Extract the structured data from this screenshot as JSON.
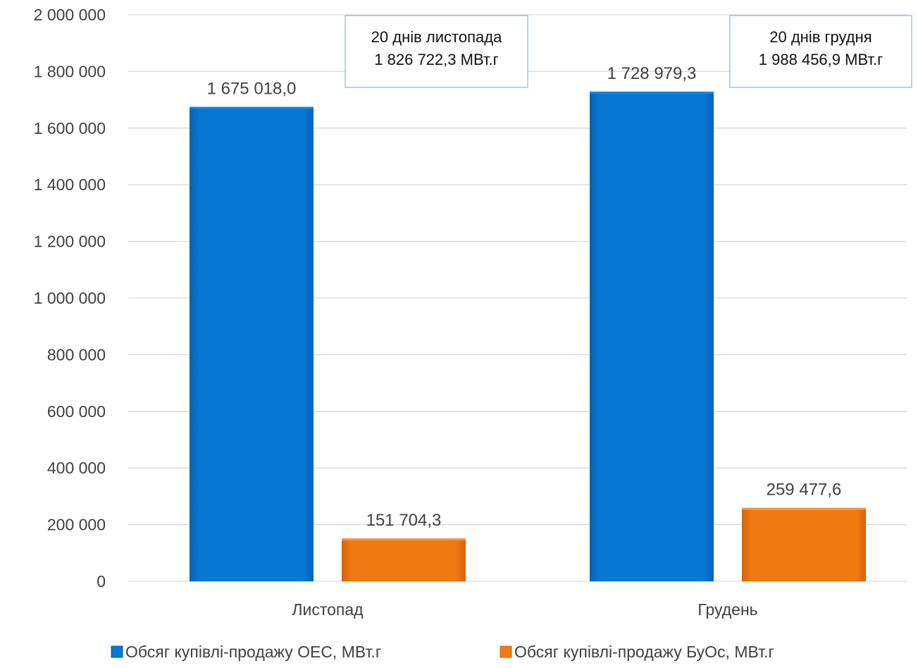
{
  "chart_data": {
    "type": "bar",
    "categories": [
      "Листопад",
      "Грудень"
    ],
    "series": [
      {
        "name": "Обсяг купівлі-продажу ОЕС, МВт.г",
        "values": [
          1675018.0,
          1728979.3
        ],
        "labels": [
          "1 675 018,0",
          "1 728 979,3"
        ],
        "color": "#0577D2"
      },
      {
        "name": "Обсяг купівлі-продажу БуОс, МВт.г",
        "values": [
          151704.3,
          259477.6
        ],
        "labels": [
          "151 704,3",
          "259 477,6"
        ],
        "color": "#F07A12"
      }
    ],
    "ylim": [
      0,
      2000000
    ],
    "yticks": [
      0,
      200000,
      400000,
      600000,
      800000,
      1000000,
      1200000,
      1400000,
      1600000,
      1800000,
      2000000
    ],
    "ytick_labels": [
      "0",
      "200 000",
      "400 000",
      "600 000",
      "800 000",
      "1 000 000",
      "1 200 000",
      "1 400 000",
      "1 600 000",
      "1 800 000",
      "2 000 000"
    ],
    "grid": true,
    "legend": "bottom",
    "annotations": [
      {
        "category": "Листопад",
        "lines": [
          "20 днів листопада",
          "1 826 722,3 МВт.г"
        ]
      },
      {
        "category": "Грудень",
        "lines": [
          "20 днів грудня",
          "1 988 456,9 МВт.г"
        ]
      }
    ],
    "title": "",
    "xlabel": "",
    "ylabel": ""
  }
}
